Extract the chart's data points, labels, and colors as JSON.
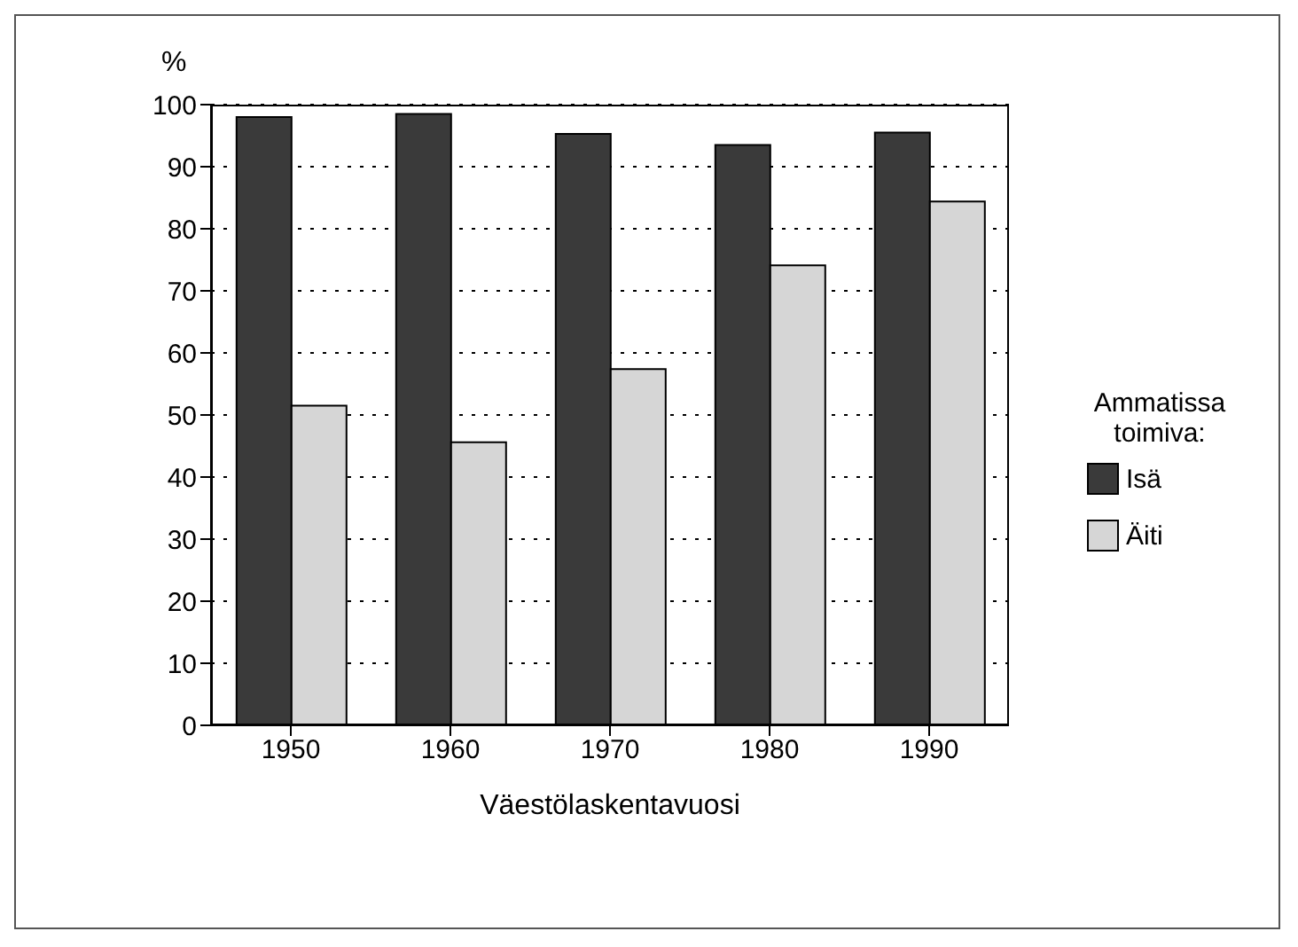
{
  "chart_data": {
    "type": "bar",
    "xlabel": "Väestölaskentavuosi",
    "ylabel": "%",
    "legend_title": "Ammatissa toimiva:",
    "categories": [
      "1950",
      "1960",
      "1970",
      "1980",
      "1990"
    ],
    "series": [
      {
        "name": "Isä",
        "color": "#3a3a3a",
        "values": [
          98,
          98.5,
          95.3,
          93.5,
          95.5
        ]
      },
      {
        "name": "Äiti",
        "color": "#d6d6d6",
        "values": [
          51.5,
          45.6,
          57.4,
          74.1,
          84.4
        ]
      }
    ],
    "ylim": [
      0,
      100
    ],
    "yticks": [
      0,
      10,
      20,
      30,
      40,
      50,
      60,
      70,
      80,
      90,
      100
    ],
    "grid": "y",
    "legend": "right"
  }
}
